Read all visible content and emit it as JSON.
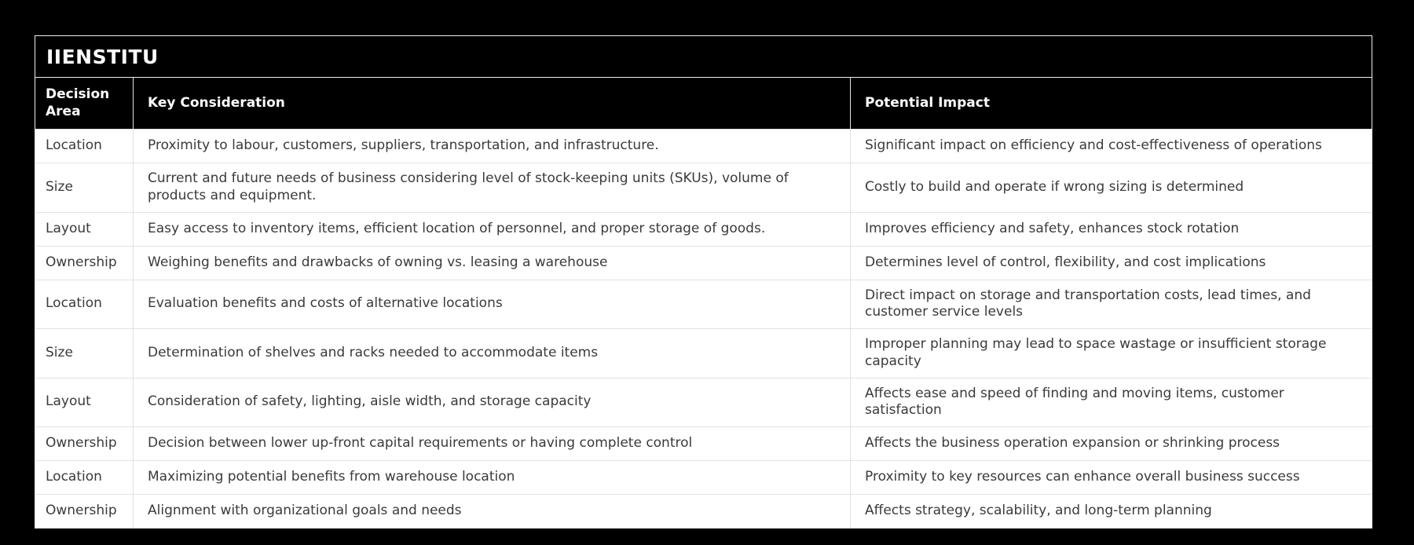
{
  "page": {
    "background": "#000000"
  },
  "table": {
    "title": "IIENSTITU",
    "columns": [
      {
        "label": "Decision Area"
      },
      {
        "label": "Key Consideration"
      },
      {
        "label": "Potential Impact"
      }
    ],
    "rows": [
      {
        "area": "Location",
        "consideration": "Proximity to labour, customers, suppliers, transportation, and infrastructure.",
        "impact": "Significant impact on efficiency and cost-effectiveness of operations"
      },
      {
        "area": "Size",
        "consideration": "Current and future needs of business considering level of stock-keeping units (SKUs), volume of products and equipment.",
        "impact": "Costly to build and operate if wrong sizing is determined"
      },
      {
        "area": "Layout",
        "consideration": "Easy access to inventory items, efficient location of personnel, and proper storage of goods.",
        "impact": "Improves efficiency and safety, enhances stock rotation"
      },
      {
        "area": "Ownership",
        "consideration": "Weighing benefits and drawbacks of owning vs. leasing a warehouse",
        "impact": "Determines level of control, flexibility, and cost implications"
      },
      {
        "area": "Location",
        "consideration": "Evaluation benefits and costs of alternative locations",
        "impact": "Direct impact on storage and transportation costs, lead times, and customer service levels"
      },
      {
        "area": "Size",
        "consideration": "Determination of shelves and racks needed to accommodate items",
        "impact": "Improper planning may lead to space wastage or insufficient storage capacity"
      },
      {
        "area": "Layout",
        "consideration": "Consideration of safety, lighting, aisle width, and storage capacity",
        "impact": "Affects ease and speed of finding and moving items, customer satisfaction"
      },
      {
        "area": "Ownership",
        "consideration": "Decision between lower up-front capital requirements or having complete control",
        "impact": "Affects the business operation expansion or shrinking process"
      },
      {
        "area": "Location",
        "consideration": "Maximizing potential benefits from warehouse location",
        "impact": "Proximity to key resources can enhance overall business success"
      },
      {
        "area": "Ownership",
        "consideration": "Alignment with organizational goals and needs",
        "impact": "Affects strategy, scalability, and long-term planning"
      }
    ],
    "colors": {
      "page_bg": "#000000",
      "header_bg": "#000000",
      "header_text": "#ffffff",
      "body_bg": "#ffffff",
      "body_text": "#3a3a3a",
      "row_divider": "#e2e2e2",
      "outer_border": "#efefef"
    }
  }
}
